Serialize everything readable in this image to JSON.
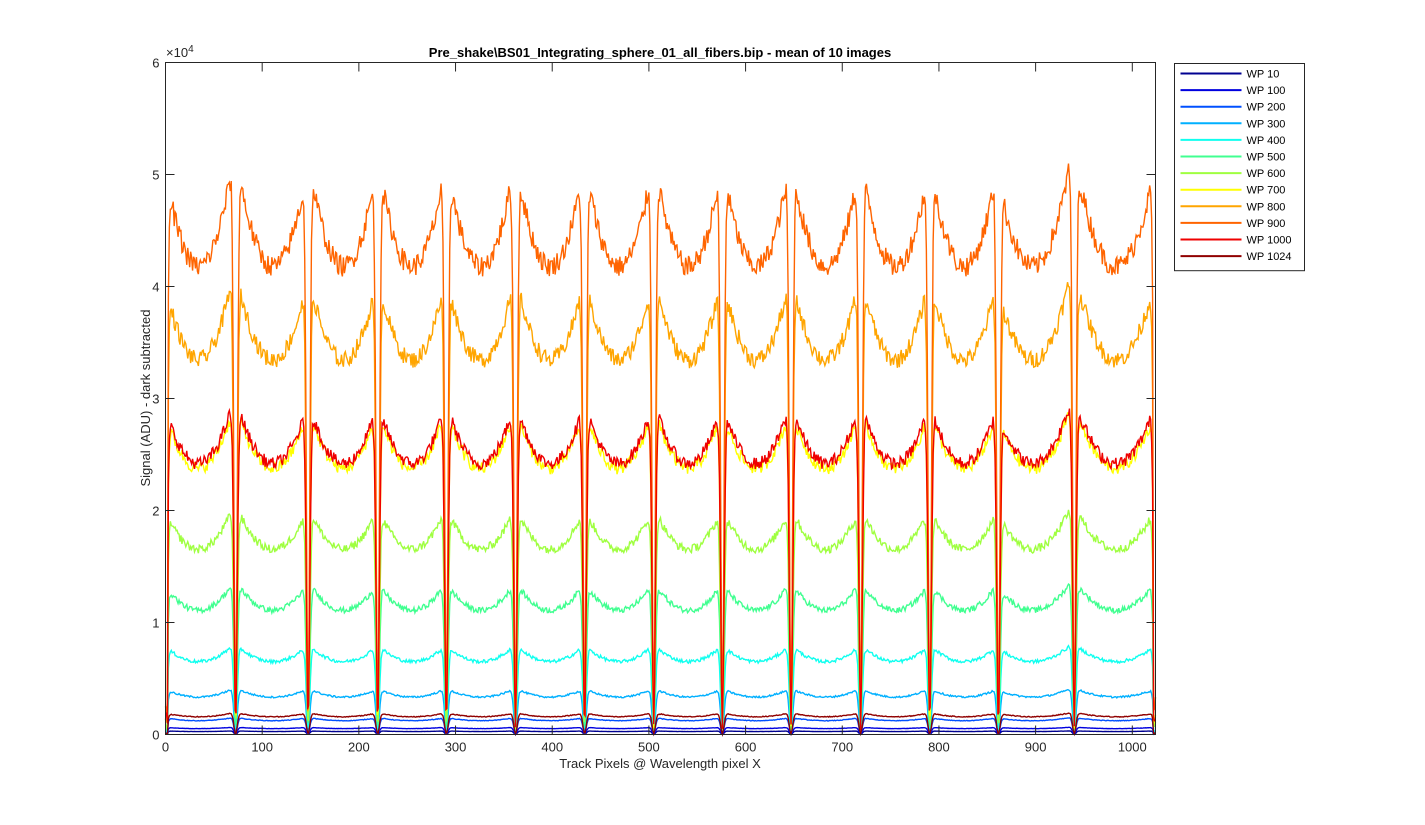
{
  "chart_data": {
    "type": "line",
    "title": "Pre_shake\\BS01_Integrating_sphere_01_all_fibers.bip - mean of 10 images",
    "xlabel": "Track Pixels @ Wavelength pixel X",
    "ylabel": "Signal (ADU) - dark subtracted",
    "xlim": [
      0,
      1024
    ],
    "ylim": [
      0,
      60000
    ],
    "x_ticks": [
      0,
      100,
      200,
      300,
      400,
      500,
      600,
      700,
      800,
      900,
      1000
    ],
    "y_ticks": [
      0,
      1,
      2,
      3,
      4,
      5,
      6
    ],
    "y_tick_labels": [
      "0",
      "1",
      "2",
      "3",
      "4",
      "5",
      "6"
    ],
    "y_exponent_label": "×10",
    "y_exponent_power": "4",
    "legend_position": "outside-top-right",
    "grid": false,
    "fiber_peak_centers": [
      34,
      111,
      184,
      255,
      326,
      398,
      469,
      541,
      611,
      683,
      755,
      826,
      897,
      983
    ],
    "series": [
      {
        "name": "WP 10",
        "color": "#000090",
        "plateau": 300
      },
      {
        "name": "WP 100",
        "color": "#0000DF",
        "plateau": 600
      },
      {
        "name": "WP 200",
        "color": "#0050FF",
        "plateau": 1400
      },
      {
        "name": "WP 300",
        "color": "#00B0FF",
        "plateau": 3800
      },
      {
        "name": "WP 400",
        "color": "#10FFEF",
        "plateau": 7400
      },
      {
        "name": "WP 500",
        "color": "#40FF90",
        "plateau": 12600
      },
      {
        "name": "WP 600",
        "color": "#9FFF40",
        "plateau": 18800
      },
      {
        "name": "WP 700",
        "color": "#FFFF00",
        "plateau": 27000
      },
      {
        "name": "WP 800",
        "color": "#FFA500",
        "plateau": 38000
      },
      {
        "name": "WP 900",
        "color": "#FF6400",
        "plateau": 47500
      },
      {
        "name": "WP 1000",
        "color": "#EF0000",
        "plateau": 27500
      },
      {
        "name": "WP 1024",
        "color": "#900000",
        "plateau": 1800
      }
    ]
  }
}
